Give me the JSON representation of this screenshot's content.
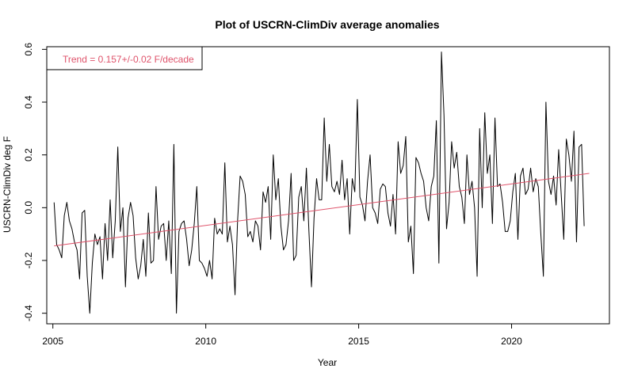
{
  "chart_data": {
    "type": "line",
    "title": "Plot of USCRN-ClimDiv average anomalies",
    "xlabel": "Year",
    "ylabel": "USCRN-ClimDiv deg F",
    "xlim": [
      2004.8,
      2023.2
    ],
    "ylim": [
      -0.44,
      0.61
    ],
    "x_ticks": [
      2005,
      2010,
      2015,
      2020
    ],
    "y_ticks": [
      -0.4,
      -0.2,
      0.0,
      0.2,
      0.4,
      0.6
    ],
    "y_tick_labels": [
      "-0.4",
      "-0.2",
      "0.0",
      "0.2",
      "0.4",
      "0.6"
    ],
    "legend": {
      "text": "Trend = 0.157+/-0.02 F/decade",
      "position": "top-left"
    },
    "series": [
      {
        "role": "anomalies",
        "color": "#000000",
        "x_start": 2005.04,
        "x_step": 0.0833333,
        "values": [
          0.02,
          -0.14,
          -0.16,
          -0.19,
          -0.03,
          0.02,
          -0.05,
          -0.08,
          -0.13,
          -0.16,
          -0.27,
          -0.02,
          -0.01,
          -0.26,
          -0.4,
          -0.21,
          -0.1,
          -0.14,
          -0.11,
          -0.27,
          -0.06,
          -0.2,
          0.03,
          -0.19,
          -0.05,
          0.23,
          -0.09,
          0.0,
          -0.3,
          -0.04,
          0.02,
          -0.03,
          -0.19,
          -0.27,
          -0.22,
          -0.12,
          -0.26,
          -0.02,
          -0.21,
          -0.2,
          0.08,
          -0.12,
          -0.07,
          -0.06,
          -0.2,
          -0.05,
          -0.25,
          0.24,
          -0.4,
          -0.09,
          -0.06,
          -0.05,
          -0.12,
          -0.22,
          -0.16,
          -0.06,
          0.08,
          -0.2,
          -0.21,
          -0.23,
          -0.26,
          -0.2,
          -0.27,
          -0.04,
          -0.1,
          -0.08,
          -0.1,
          0.17,
          -0.13,
          -0.07,
          -0.14,
          -0.33,
          -0.05,
          0.12,
          0.1,
          0.05,
          -0.11,
          -0.09,
          -0.13,
          -0.05,
          -0.07,
          -0.16,
          0.06,
          0.02,
          0.08,
          -0.12,
          0.2,
          0.03,
          0.11,
          -0.07,
          -0.16,
          -0.14,
          -0.05,
          0.13,
          -0.2,
          -0.18,
          0.04,
          0.08,
          -0.05,
          0.15,
          -0.09,
          -0.3,
          -0.04,
          0.11,
          0.03,
          0.03,
          0.34,
          0.1,
          0.24,
          0.08,
          0.06,
          0.1,
          0.05,
          0.18,
          0.03,
          0.11,
          -0.1,
          0.11,
          0.06,
          0.41,
          0.04,
          0.01,
          -0.05,
          0.1,
          0.2,
          0.0,
          -0.02,
          -0.06,
          0.07,
          0.09,
          0.08,
          -0.02,
          -0.07,
          0.05,
          -0.1,
          0.25,
          0.13,
          0.16,
          0.27,
          -0.13,
          -0.07,
          -0.25,
          0.19,
          0.17,
          0.13,
          0.1,
          0.0,
          -0.05,
          0.08,
          0.12,
          0.33,
          -0.21,
          0.59,
          0.35,
          -0.08,
          0.02,
          0.25,
          0.15,
          0.21,
          0.08,
          0.04,
          -0.06,
          0.2,
          0.05,
          0.1,
          0.0,
          -0.26,
          0.3,
          0.0,
          0.36,
          0.13,
          0.2,
          -0.06,
          0.34,
          0.08,
          0.09,
          0.02,
          -0.09,
          -0.09,
          -0.05,
          0.06,
          0.13,
          -0.12,
          0.12,
          0.15,
          0.05,
          0.07,
          0.15,
          0.06,
          0.11,
          0.08,
          -0.1,
          -0.26,
          0.4,
          0.1,
          0.05,
          0.12,
          0.01,
          0.22,
          0.05,
          -0.12,
          0.26,
          0.2,
          0.1,
          0.29,
          -0.13,
          0.23,
          0.24,
          -0.07
        ]
      },
      {
        "role": "trend",
        "color": "#df536b",
        "x": [
          2005.04,
          2022.54
        ],
        "y": [
          -0.145,
          0.13
        ]
      }
    ]
  }
}
